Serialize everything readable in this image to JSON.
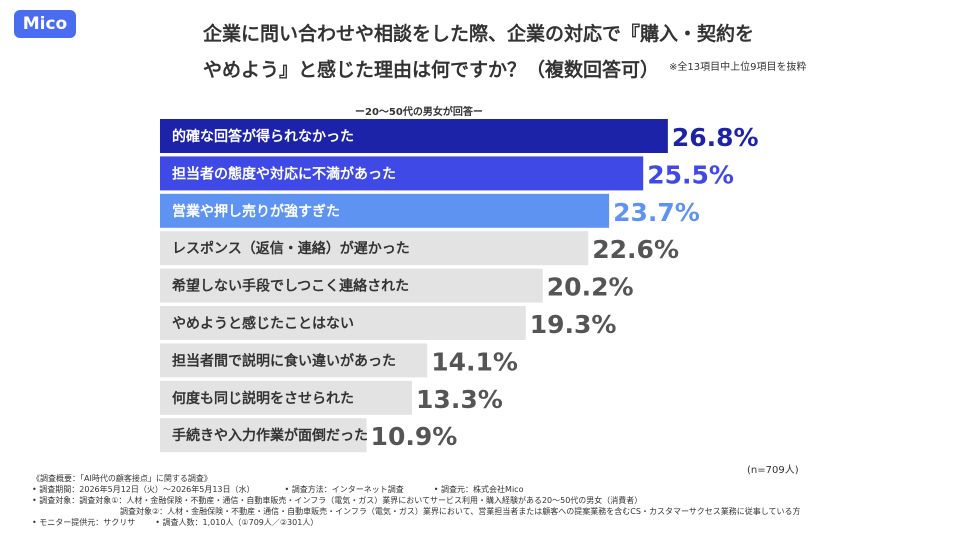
{
  "logo": "Mico",
  "title_line1": "企業に問い合わせや相談をした際、企業の対応で『購入・契約を",
  "title_line2": "やめよう』と感じた理由は何ですか？（複数回答可）",
  "note": "※全13項目中上位9項目を抜粋",
  "respondents": "ー20〜50代の男女が回答ー",
  "sample_size": "(n=709人)",
  "footnotes": {
    "survey_title": "《調査概要：「AI時代の顧客接点」に関する調査》",
    "period": "• 調査期間：2026年5月12日（火）〜2026年5月13日（水）",
    "method": "• 調査方法：インターネット調査",
    "organizer": "• 調査元：株式会社Mico",
    "target1": "• 調査対象：調査対象①：人材・金融保険・不動産・通信・自動車販売・インフラ（電気・ガス）業界においてサービス利用・購入経験がある20〜50代の男女（消費者）",
    "target2": "調査対象②：人材・金融保険・不動産・通信・自動車販売・インフラ（電気・ガス）業界において、営業担当者または顧客への提案業務を含むCS・カスタマーサクセス業務に従事している方",
    "provider": "• モニター提供元：サクリサ",
    "count": "• 調査人数：1,010人（①709人／②301人）"
  },
  "chart_data": {
    "type": "bar",
    "orientation": "horizontal",
    "unit": "%",
    "categories": [
      "的確な回答が得られなかった",
      "担当者の態度や対応に不満があった",
      "営業や押し売りが強すぎた",
      "レスポンス（返信・連絡）が遅かった",
      "希望しない手段でしつこく連絡された",
      "やめようと感じたことはない",
      "担当者間で説明に食い違いがあった",
      "何度も同じ説明をさせられた",
      "手続きや入力作業が面倒だった"
    ],
    "values": [
      26.8,
      25.5,
      23.7,
      22.6,
      20.2,
      19.3,
      14.1,
      13.3,
      10.9
    ],
    "value_labels": [
      "26.8%",
      "25.5%",
      "23.7%",
      "22.6%",
      "20.2%",
      "19.3%",
      "14.1%",
      "13.3%",
      "10.9%"
    ],
    "bar_colors": [
      "#1c23a8",
      "#3f49e6",
      "#5e93f2",
      "#e3e3e3",
      "#e3e3e3",
      "#e3e3e3",
      "#e3e3e3",
      "#e3e3e3",
      "#e3e3e3"
    ],
    "label_colors": [
      "#1c23a8",
      "#3f49e6",
      "#5e93f2",
      "#555555",
      "#555555",
      "#555555",
      "#555555",
      "#555555",
      "#555555"
    ],
    "text_colors": [
      "#ffffff",
      "#ffffff",
      "#ffffff",
      "#333333",
      "#333333",
      "#333333",
      "#333333",
      "#333333",
      "#333333"
    ]
  }
}
